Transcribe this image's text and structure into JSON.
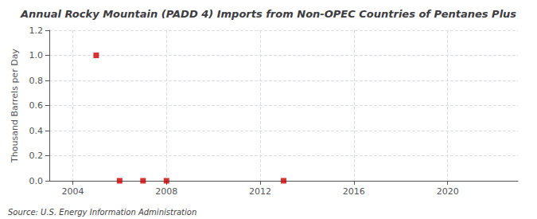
{
  "chart_data": {
    "type": "scatter",
    "title": "Annual Rocky Mountain (PADD 4) Imports from Non-OPEC Countries of Pentanes Plus",
    "ylabel": "Thousand Barrels per Day",
    "annotation": "Source: U.S. Energy Information Administration",
    "x": [
      2005,
      2006,
      2007,
      2008,
      2013
    ],
    "values": [
      1.0,
      0.0,
      0.0,
      0.0,
      0.0
    ],
    "color": "#cc0000",
    "marker": "square",
    "xlim": [
      2003,
      2023
    ],
    "xticks": [
      2004,
      2008,
      2012,
      2016,
      2020
    ],
    "ylim": [
      0.0,
      1.2
    ],
    "yticks": [
      {
        "value": 0.0,
        "label": "0.0"
      },
      0.2,
      0.4,
      0.6,
      0.8,
      {
        "value": 1.0,
        "label": "1.0"
      },
      1.2
    ],
    "grid": true
  }
}
